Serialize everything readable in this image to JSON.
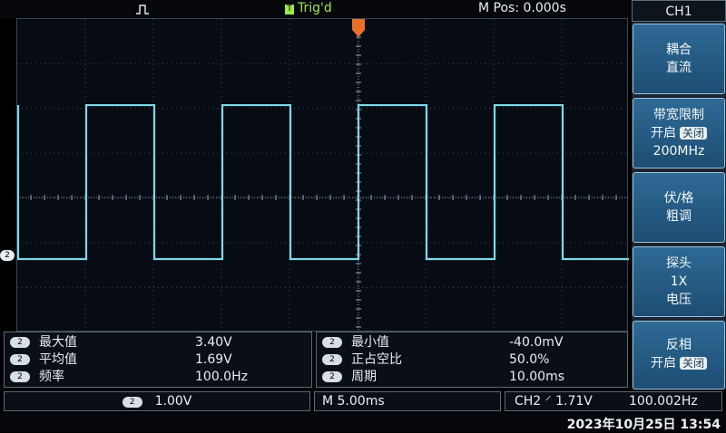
{
  "topbar": {
    "trigger_state": "Trig'd",
    "trigger_icon": "T",
    "mpos": "M Pos: 0.000s"
  },
  "channel_marker": "2",
  "waveform": {
    "channel": "CH2",
    "period_ms": 10.0,
    "duty": 0.5,
    "max_v": 3.4,
    "min_v": -0.04,
    "volts_per_div": 1.0,
    "time_per_div_ms": 5.0,
    "color": "#7fd8e8"
  },
  "measurements": {
    "left": [
      {
        "badge": "2",
        "label": "最大值",
        "value": "3.40V"
      },
      {
        "badge": "2",
        "label": "平均值",
        "value": "1.69V"
      },
      {
        "badge": "2",
        "label": "频率",
        "value": "100.0Hz"
      }
    ],
    "right": [
      {
        "badge": "2",
        "label": "最小值",
        "value": "-40.0mV"
      },
      {
        "badge": "2",
        "label": "正占空比",
        "value": "50.0%"
      },
      {
        "badge": "2",
        "label": "周期",
        "value": "10.00ms"
      }
    ]
  },
  "status": {
    "ch_badge": "2",
    "volts": "1.00V",
    "timebase": "M 5.00ms",
    "trigger": "CH2 ⸍ 1.71V",
    "trig_freq": "100.002Hz"
  },
  "datetime": "2023年10月25日 13:54",
  "menu": {
    "title": "CH1",
    "coupling": {
      "line1": "耦合",
      "line2": "直流"
    },
    "bw_limit": {
      "line1": "带宽限制",
      "line2": "开启",
      "toggle": "关闭",
      "line3": "200MHz"
    },
    "volts_div": {
      "line1": "伏/格",
      "line2": "粗调"
    },
    "probe": {
      "line1": "探头",
      "line2": "1X",
      "line3": "电压"
    },
    "invert": {
      "line1": "反相",
      "line2": "开启",
      "toggle": "关闭"
    }
  }
}
